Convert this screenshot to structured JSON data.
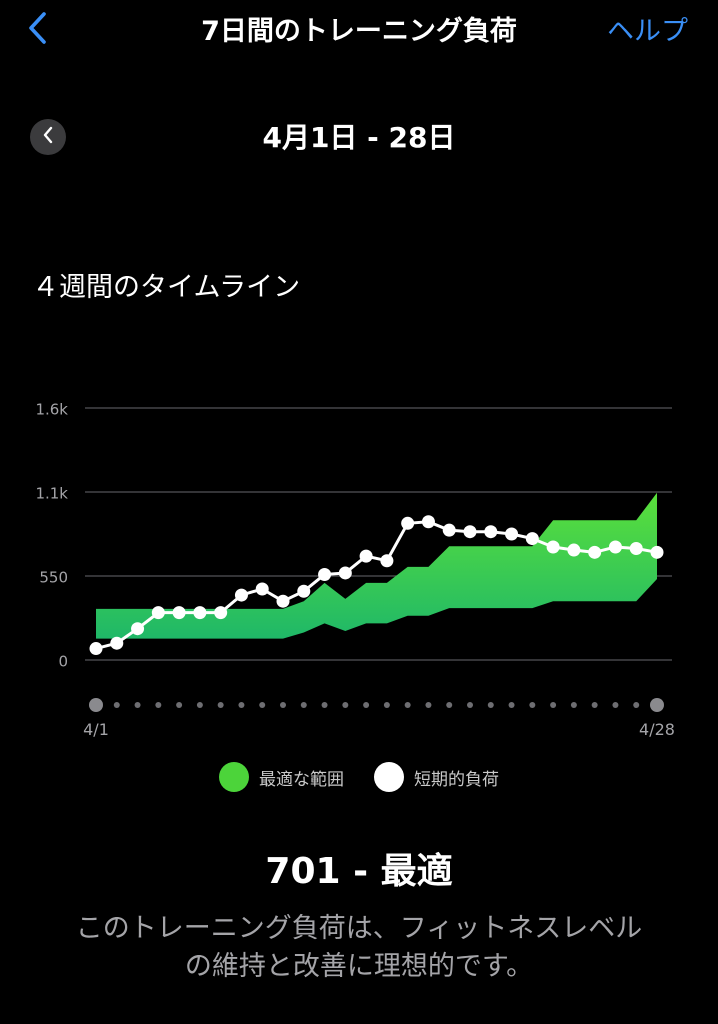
{
  "header": {
    "title": "7日間のトレーニング負荷",
    "help_label": "ヘルプ",
    "back_icon": "chevron-left-icon"
  },
  "date_range": {
    "label": "4月1日 - 28日",
    "prev_icon": "chevron-left-icon"
  },
  "section": {
    "title": "４週間のタイムライン"
  },
  "chart_data": {
    "type": "line",
    "ytick_labels": [
      "0",
      "550",
      "1.1k",
      "1.6k"
    ],
    "yticks": [
      0,
      550,
      1100,
      1650
    ],
    "ylim": [
      0,
      1650
    ],
    "xlim": [
      1,
      28
    ],
    "xtick_labels": [
      "4/1",
      "4/28"
    ],
    "x": [
      1,
      2,
      3,
      4,
      5,
      6,
      7,
      8,
      9,
      10,
      11,
      12,
      13,
      14,
      15,
      16,
      17,
      18,
      19,
      20,
      21,
      22,
      23,
      24,
      25,
      26,
      27,
      28
    ],
    "optimal_range": {
      "name": "最適な範囲",
      "color": "#4cd43a",
      "upper": [
        335,
        335,
        335,
        335,
        335,
        335,
        335,
        335,
        335,
        335,
        385,
        505,
        400,
        505,
        505,
        610,
        610,
        745,
        745,
        745,
        745,
        745,
        915,
        915,
        915,
        915,
        915,
        1095
      ],
      "lower": [
        140,
        140,
        140,
        140,
        140,
        140,
        140,
        140,
        140,
        140,
        180,
        240,
        190,
        240,
        240,
        290,
        290,
        340,
        340,
        340,
        340,
        340,
        385,
        385,
        385,
        385,
        385,
        530
      ]
    },
    "short_term_load": {
      "name": "短期的負荷",
      "color": "#ffffff",
      "values": [
        75,
        110,
        205,
        310,
        310,
        310,
        310,
        425,
        465,
        385,
        450,
        560,
        570,
        680,
        650,
        895,
        905,
        850,
        840,
        840,
        825,
        795,
        740,
        720,
        705,
        740,
        730,
        705
      ]
    },
    "grid": true,
    "legend": "bottom-center"
  },
  "status": {
    "value_label": "701 - 最適",
    "description_line1": "このトレーニング負荷は、フィットネスレベル",
    "description_line2": "の維持と改善に理想的です。"
  }
}
